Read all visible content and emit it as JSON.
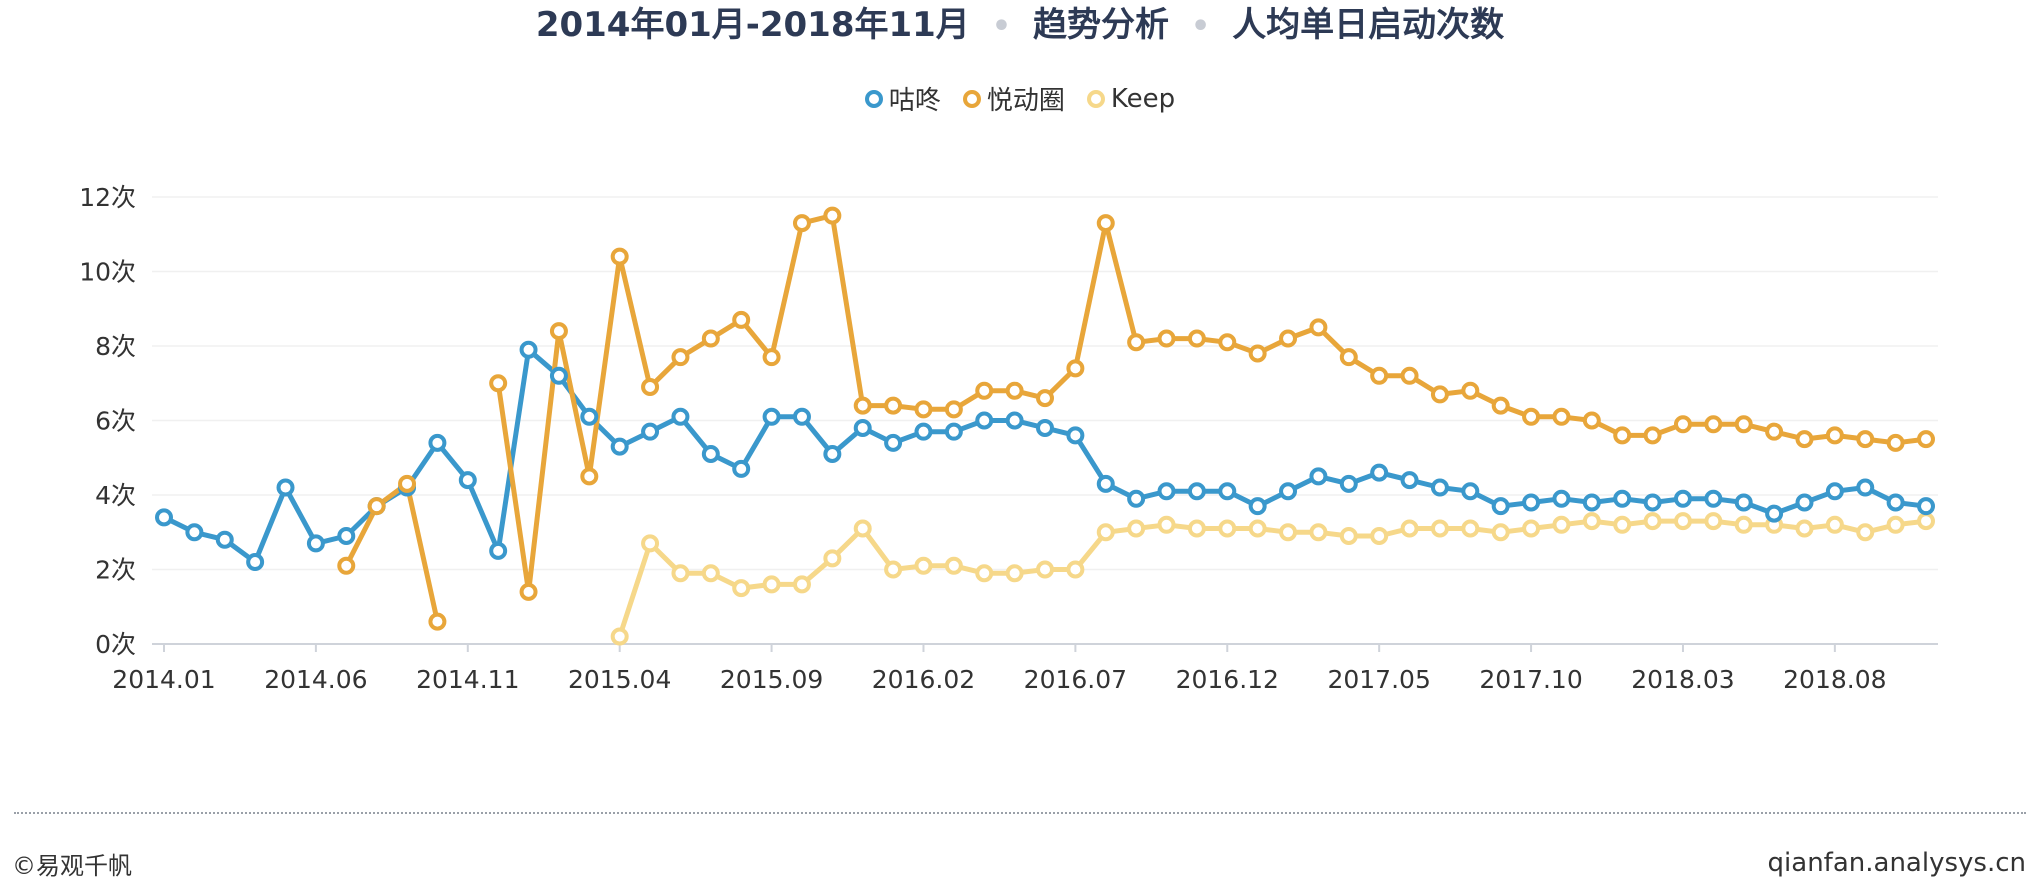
{
  "title": {
    "period": "2014年01月-2018年11月",
    "section": "趋势分析",
    "metric": "人均单日启动次数"
  },
  "footer": {
    "copyright": "©易观千帆",
    "site": "qianfan.analysys.cn"
  },
  "chart_data": {
    "type": "line",
    "yunit": "次",
    "ylim": [
      0,
      12
    ],
    "yticks": [
      0,
      2,
      4,
      6,
      8,
      10,
      12
    ],
    "grid": true,
    "legend_position": "top-center",
    "x": [
      "2014.01",
      "2014.02",
      "2014.03",
      "2014.04",
      "2014.05",
      "2014.06",
      "2014.07",
      "2014.08",
      "2014.09",
      "2014.10",
      "2014.11",
      "2014.12",
      "2015.01",
      "2015.02",
      "2015.03",
      "2015.04",
      "2015.05",
      "2015.06",
      "2015.07",
      "2015.08",
      "2015.09",
      "2015.10",
      "2015.11",
      "2015.12",
      "2016.01",
      "2016.02",
      "2016.03",
      "2016.04",
      "2016.05",
      "2016.06",
      "2016.07",
      "2016.08",
      "2016.09",
      "2016.10",
      "2016.11",
      "2016.12",
      "2017.01",
      "2017.02",
      "2017.03",
      "2017.04",
      "2017.05",
      "2017.06",
      "2017.07",
      "2017.08",
      "2017.09",
      "2017.10",
      "2017.11",
      "2017.12",
      "2018.01",
      "2018.02",
      "2018.03",
      "2018.04",
      "2018.05",
      "2018.06",
      "2018.07",
      "2018.08",
      "2018.09",
      "2018.10",
      "2018.11"
    ],
    "xtick_labels": [
      "2014.01",
      "2014.06",
      "2014.11",
      "2015.04",
      "2015.09",
      "2016.02",
      "2016.07",
      "2016.12",
      "2017.05",
      "2017.10",
      "2018.03",
      "2018.08"
    ],
    "series": [
      {
        "name": "咕咚",
        "color": "#3a98cc",
        "values": [
          3.4,
          3.0,
          2.8,
          2.2,
          4.2,
          2.7,
          2.9,
          3.7,
          4.2,
          5.4,
          4.4,
          2.5,
          7.9,
          7.2,
          6.1,
          5.3,
          5.7,
          6.1,
          5.1,
          4.7,
          6.1,
          6.1,
          5.1,
          5.8,
          5.4,
          5.7,
          5.7,
          6.0,
          6.0,
          5.8,
          5.6,
          4.3,
          3.9,
          4.1,
          4.1,
          4.1,
          3.7,
          4.1,
          4.5,
          4.3,
          4.6,
          4.4,
          4.2,
          4.1,
          3.7,
          3.8,
          3.9,
          3.8,
          3.9,
          3.8,
          3.9,
          3.9,
          3.8,
          3.5,
          3.8,
          4.1,
          4.2,
          3.8,
          3.7
        ]
      },
      {
        "name": "悦动圈",
        "color": "#e8a63a",
        "values": [
          null,
          null,
          null,
          null,
          null,
          null,
          2.1,
          3.7,
          4.3,
          0.6,
          null,
          7.0,
          1.4,
          8.4,
          4.5,
          10.4,
          6.9,
          7.7,
          8.2,
          8.7,
          7.7,
          11.3,
          11.5,
          6.4,
          6.4,
          6.3,
          6.3,
          6.8,
          6.8,
          6.6,
          7.4,
          11.3,
          8.1,
          8.2,
          8.2,
          8.1,
          7.8,
          8.2,
          8.5,
          7.7,
          7.2,
          7.2,
          6.7,
          6.8,
          6.4,
          6.1,
          6.1,
          6.0,
          5.6,
          5.6,
          5.9,
          5.9,
          5.9,
          5.7,
          5.5,
          5.6,
          5.5,
          5.4,
          5.5
        ]
      },
      {
        "name": "Keep",
        "color": "#f6d88a",
        "values": [
          null,
          null,
          null,
          null,
          null,
          null,
          null,
          null,
          null,
          null,
          null,
          null,
          null,
          null,
          null,
          0.2,
          2.7,
          1.9,
          1.9,
          1.5,
          1.6,
          1.6,
          2.3,
          3.1,
          2.0,
          2.1,
          2.1,
          1.9,
          1.9,
          2.0,
          2.0,
          3.0,
          3.1,
          3.2,
          3.1,
          3.1,
          3.1,
          3.0,
          3.0,
          2.9,
          2.9,
          3.1,
          3.1,
          3.1,
          3.0,
          3.1,
          3.2,
          3.3,
          3.2,
          3.3,
          3.3,
          3.3,
          3.2,
          3.2,
          3.1,
          3.2,
          3.0,
          3.2,
          3.3
        ]
      }
    ]
  }
}
